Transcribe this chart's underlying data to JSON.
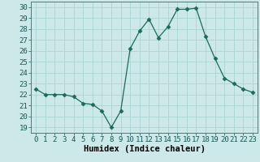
{
  "x": [
    0,
    1,
    2,
    3,
    4,
    5,
    6,
    7,
    8,
    9,
    10,
    11,
    12,
    13,
    14,
    15,
    16,
    17,
    18,
    19,
    20,
    21,
    22,
    23
  ],
  "y": [
    22.5,
    22.0,
    22.0,
    22.0,
    21.8,
    21.2,
    21.1,
    20.5,
    19.0,
    20.5,
    26.2,
    27.8,
    28.9,
    27.2,
    28.2,
    29.8,
    29.8,
    29.9,
    27.3,
    25.3,
    23.5,
    23.0,
    22.5,
    22.2
  ],
  "xlabel": "Humidex (Indice chaleur)",
  "xlim": [
    -0.5,
    23.5
  ],
  "ylim": [
    18.5,
    30.5
  ],
  "yticks": [
    19,
    20,
    21,
    22,
    23,
    24,
    25,
    26,
    27,
    28,
    29,
    30
  ],
  "xticks": [
    0,
    1,
    2,
    3,
    4,
    5,
    6,
    7,
    8,
    9,
    10,
    11,
    12,
    13,
    14,
    15,
    16,
    17,
    18,
    19,
    20,
    21,
    22,
    23
  ],
  "line_color": "#1a6b5a",
  "marker": "D",
  "marker_size": 2.5,
  "bg_color": "#cce8e8",
  "grid_color": "#aad4d4",
  "xlabel_fontsize": 7.5,
  "tick_fontsize": 6.5
}
